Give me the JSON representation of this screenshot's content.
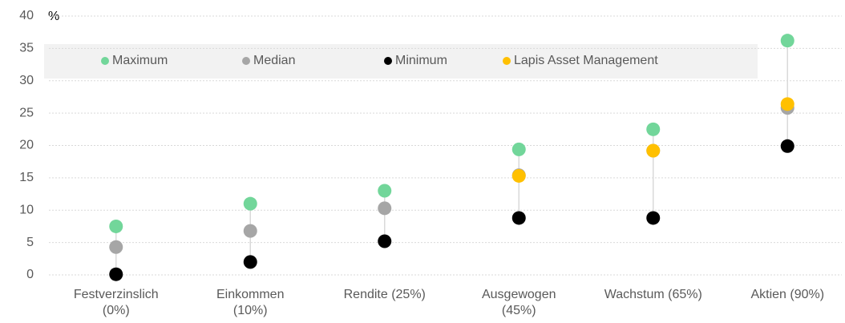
{
  "chart_data": {
    "type": "dot",
    "ylabel": "%",
    "categories": [
      "Festverzinslich\n(0%)",
      "Einkommen\n(10%)",
      "Rendite (25%)",
      "Ausgewogen\n(45%)",
      "Wachstum (65%)",
      "Aktien (90%)"
    ],
    "series": [
      {
        "name": "Maximum",
        "color": "#72d69a",
        "values": [
          7.5,
          11.0,
          13.0,
          19.4,
          22.5,
          36.2
        ]
      },
      {
        "name": "Median",
        "color": "#a6a6a6",
        "values": [
          4.3,
          6.8,
          10.3,
          15.4,
          19.2,
          25.8
        ]
      },
      {
        "name": "Minimum",
        "color": "#000000",
        "values": [
          0.1,
          2.0,
          5.2,
          8.8,
          8.8,
          19.9
        ]
      },
      {
        "name": "Lapis Asset Management",
        "color": "#ffc000",
        "values": [
          null,
          null,
          null,
          15.3,
          19.2,
          26.4
        ]
      }
    ],
    "ylim": [
      0,
      40
    ],
    "yticks": [
      0,
      5,
      10,
      15,
      20,
      25,
      30,
      35,
      40
    ],
    "grid": true,
    "legend": "top"
  }
}
